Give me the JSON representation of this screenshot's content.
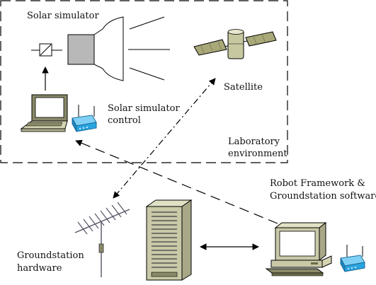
{
  "labels": {
    "solar_simulator": "Solar simulator",
    "satellite": "Satellite",
    "solar_simulator_control_line1": "Solar simulator",
    "solar_simulator_control_line2": "control",
    "laboratory_line1": "Laboratory",
    "laboratory_line2": "environment",
    "robot_framework_line1": "Robot Framework &",
    "robot_framework_line2": "Groundstation software",
    "groundstation_line1": "Groundstation",
    "groundstation_line2": "hardware"
  },
  "colors": {
    "line": "#000000",
    "lamp_gray": "#b8b8b8",
    "computer_beige": "#d4d4b4",
    "computer_dark": "#8a8a6a",
    "wireless_blue": "#2aa4e0",
    "satellite_panel": "#a8a878",
    "server_beige": "#c9c9a8"
  },
  "icons": {
    "solar_lamp": "solar-lamp-icon",
    "satellite": "satellite-icon",
    "laptop": "laptop-icon",
    "wireless_router": "wireless-router-icon",
    "antenna": "yagi-antenna-icon",
    "server": "server-tower-icon",
    "desktop": "desktop-computer-icon"
  }
}
